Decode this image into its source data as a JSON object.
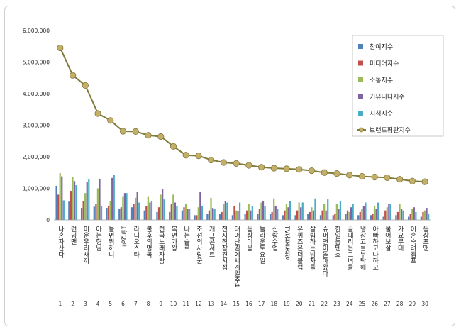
{
  "chart_data": {
    "type": "bar",
    "title": "",
    "xlabel": "",
    "ylabel": "",
    "ylim": [
      0,
      6000000
    ],
    "yticks": [
      "0",
      "1,000,000",
      "2,000,000",
      "3,000,000",
      "4,000,000",
      "5,000,000",
      "6,000,000"
    ],
    "ytick_values": [
      0,
      1000000,
      2000000,
      3000000,
      4000000,
      5000000,
      6000000
    ],
    "grid": false,
    "legend_position": "top-right",
    "categories": [
      "나혼자산다",
      "런닝맨",
      "미운우리새끼",
      "아는형님",
      "놀면뭐하니",
      "1박2일",
      "라디오스타",
      "불후의명곡",
      "전국노래자랑",
      "복면가왕",
      "나는솔로",
      "조선의사랑꾼",
      "개그콘서트",
      "전지적참견시점",
      "태어난김에세계일주4",
      "동상이몽",
      "놀라운토요일",
      "신랑수업",
      "TV동물농장",
      "유퀴즈온더블럭",
      "살림하는남자들",
      "슈퍼맨이돌아왔다",
      "한일톱텐쇼",
      "골때리는그녀들",
      "냉장고를부탁해",
      "아빠하고나하고",
      "물어보살",
      "가요무대",
      "이혼숙려캠프",
      "동상포맨"
    ],
    "ranks": [
      "1",
      "2",
      "3",
      "4",
      "5",
      "6",
      "7",
      "8",
      "9",
      "10",
      "11",
      "12",
      "13",
      "14",
      "15",
      "16",
      "17",
      "18",
      "19",
      "20",
      "21",
      "22",
      "23",
      "24",
      "25",
      "26",
      "27",
      "28",
      "29",
      "30"
    ],
    "series": [
      {
        "name": "참여지수",
        "color": "#4f81bd",
        "values": [
          1080000,
          580000,
          380000,
          420000,
          380000,
          350000,
          400000,
          300000,
          250000,
          250000,
          300000,
          150000,
          180000,
          200000,
          150000,
          200000,
          180000,
          200000,
          150000,
          150000,
          200000,
          150000,
          150000,
          200000,
          150000,
          150000,
          100000,
          150000,
          100000,
          100000
        ]
      },
      {
        "name": "미디어지수",
        "color": "#c0504d",
        "values": [
          800000,
          920000,
          600000,
          500000,
          450000,
          400000,
          500000,
          450000,
          400000,
          500000,
          400000,
          150000,
          300000,
          250000,
          450000,
          300000,
          350000,
          250000,
          300000,
          300000,
          250000,
          300000,
          200000,
          300000,
          250000,
          200000,
          300000,
          250000,
          200000,
          250000
        ]
      },
      {
        "name": "소통지수",
        "color": "#9bbb59",
        "values": [
          1480000,
          1350000,
          850000,
          1000000,
          600000,
          750000,
          700000,
          750000,
          800000,
          800000,
          500000,
          400000,
          700000,
          500000,
          300000,
          500000,
          550000,
          680000,
          500000,
          550000,
          400000,
          500000,
          500000,
          250000,
          350000,
          450000,
          400000,
          500000,
          350000,
          300000
        ]
      },
      {
        "name": "커뮤니티지수",
        "color": "#8064a2",
        "values": [
          1380000,
          1230000,
          1200000,
          1300000,
          1330000,
          850000,
          900000,
          550000,
          980000,
          550000,
          350000,
          900000,
          380000,
          600000,
          280000,
          300000,
          600000,
          450000,
          400000,
          400000,
          300000,
          300000,
          350000,
          400000,
          450000,
          350000,
          500000,
          350000,
          400000,
          380000
        ]
      },
      {
        "name": "시청지수",
        "color": "#4bacc6",
        "values": [
          620000,
          1100000,
          1280000,
          450000,
          1430000,
          850000,
          550000,
          600000,
          650000,
          450000,
          350000,
          450000,
          350000,
          550000,
          550000,
          450000,
          450000,
          350000,
          600000,
          550000,
          680000,
          650000,
          600000,
          500000,
          550000,
          550000,
          500000,
          300000,
          250000,
          200000
        ]
      }
    ],
    "line_series": {
      "name": "브랜드평판지수",
      "color": "#7f7a3a",
      "values": [
        5450000,
        4580000,
        4260000,
        3370000,
        3150000,
        2810000,
        2800000,
        2680000,
        2640000,
        2330000,
        2050000,
        2030000,
        1900000,
        1820000,
        1790000,
        1730000,
        1670000,
        1640000,
        1620000,
        1600000,
        1560000,
        1500000,
        1470000,
        1420000,
        1380000,
        1360000,
        1340000,
        1290000,
        1230000,
        1210000
      ]
    }
  }
}
